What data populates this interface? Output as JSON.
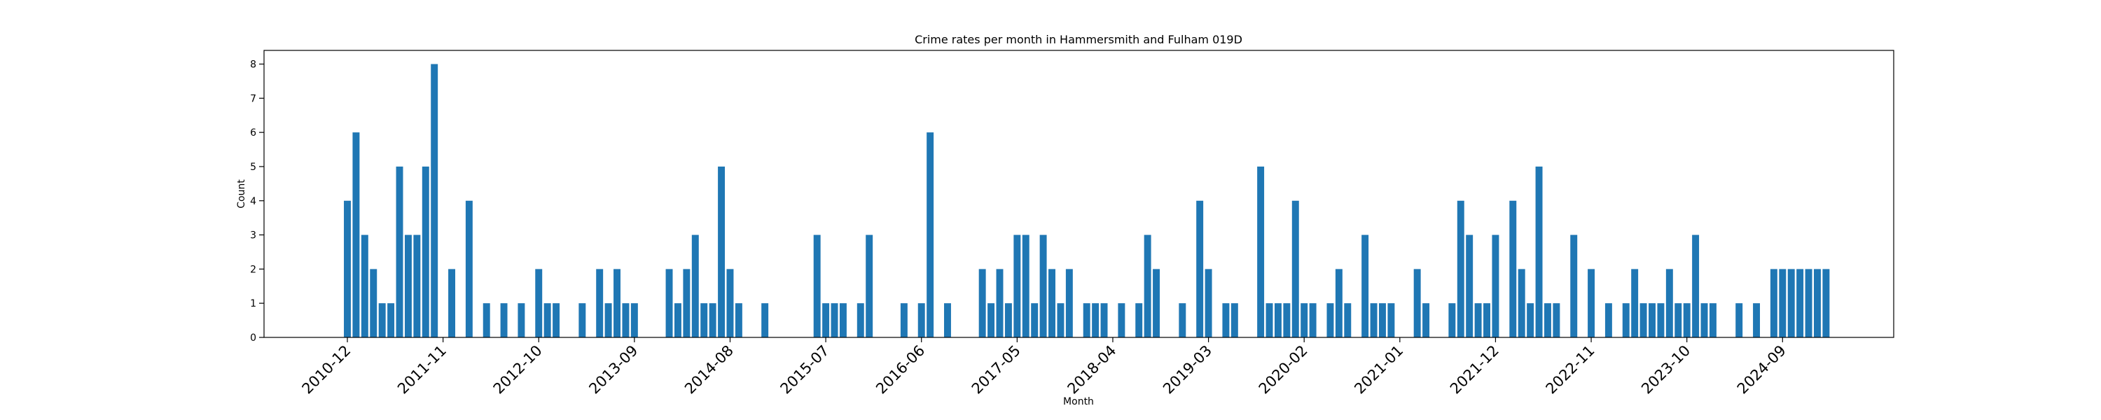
{
  "chart_data": {
    "type": "bar",
    "title": "Crime rates per month in Hammersmith and Fulham 019D",
    "xlabel": "Month",
    "ylabel": "Count",
    "ylim": [
      0,
      8.4
    ],
    "yticks": [
      0,
      1,
      2,
      3,
      4,
      5,
      6,
      7,
      8
    ],
    "xticks": [
      "2010-12",
      "2011-11",
      "2012-10",
      "2013-09",
      "2014-08",
      "2015-07",
      "2016-06",
      "2017-05",
      "2018-04",
      "2019-03",
      "2020-02",
      "2021-01",
      "2021-12",
      "2022-11",
      "2023-10",
      "2024-09"
    ],
    "grid": false,
    "color": "#1f77b4",
    "x": [
      "2010-12",
      "2011-01",
      "2011-02",
      "2011-03",
      "2011-04",
      "2011-05",
      "2011-06",
      "2011-07",
      "2011-08",
      "2011-09",
      "2011-10",
      "2011-12",
      "2012-02",
      "2012-04",
      "2012-06",
      "2012-08",
      "2012-10",
      "2012-11",
      "2012-12",
      "2013-03",
      "2013-05",
      "2013-06",
      "2013-07",
      "2013-08",
      "2013-09",
      "2014-01",
      "2014-02",
      "2014-03",
      "2014-04",
      "2014-05",
      "2014-06",
      "2014-07",
      "2014-08",
      "2014-09",
      "2014-12",
      "2015-06",
      "2015-07",
      "2015-08",
      "2015-09",
      "2015-11",
      "2015-12",
      "2016-04",
      "2016-06",
      "2016-07",
      "2016-09",
      "2017-01",
      "2017-02",
      "2017-03",
      "2017-04",
      "2017-05",
      "2017-06",
      "2017-07",
      "2017-08",
      "2017-09",
      "2017-10",
      "2017-11",
      "2018-01",
      "2018-02",
      "2018-03",
      "2018-05",
      "2018-07",
      "2018-08",
      "2018-09",
      "2018-12",
      "2019-02",
      "2019-03",
      "2019-05",
      "2019-06",
      "2019-09",
      "2019-10",
      "2019-11",
      "2019-12",
      "2020-01",
      "2020-02",
      "2020-03",
      "2020-05",
      "2020-06",
      "2020-07",
      "2020-09",
      "2020-10",
      "2020-11",
      "2020-12",
      "2021-03",
      "2021-04",
      "2021-07",
      "2021-08",
      "2021-09",
      "2021-10",
      "2021-11",
      "2021-12",
      "2022-02",
      "2022-03",
      "2022-04",
      "2022-05",
      "2022-06",
      "2022-07",
      "2022-09",
      "2022-11",
      "2023-01",
      "2023-03",
      "2023-04",
      "2023-05",
      "2023-06",
      "2023-07",
      "2023-08",
      "2023-09",
      "2023-10",
      "2023-11",
      "2023-12",
      "2024-01",
      "2024-04",
      "2024-06",
      "2024-08",
      "2024-09",
      "2024-10",
      "2024-11",
      "2024-12",
      "2025-01",
      "2025-02"
    ],
    "values": [
      4,
      6,
      3,
      2,
      1,
      1,
      5,
      3,
      3,
      5,
      8,
      2,
      4,
      1,
      1,
      1,
      2,
      1,
      1,
      1,
      2,
      1,
      2,
      1,
      1,
      2,
      1,
      2,
      3,
      1,
      1,
      5,
      2,
      1,
      1,
      3,
      1,
      1,
      1,
      1,
      3,
      1,
      1,
      6,
      1,
      2,
      1,
      2,
      1,
      3,
      3,
      1,
      3,
      2,
      1,
      2,
      1,
      1,
      1,
      1,
      1,
      3,
      2,
      1,
      4,
      2,
      1,
      1,
      5,
      1,
      1,
      1,
      4,
      1,
      1,
      1,
      2,
      1,
      3,
      1,
      1,
      1,
      2,
      1,
      1,
      4,
      3,
      1,
      1,
      3,
      4,
      2,
      1,
      5,
      1,
      1,
      3,
      2,
      1,
      1,
      2,
      1,
      1,
      1,
      2,
      1,
      1,
      3,
      1,
      1,
      1,
      1,
      2,
      2,
      2,
      2,
      2,
      2,
      2
    ]
  }
}
